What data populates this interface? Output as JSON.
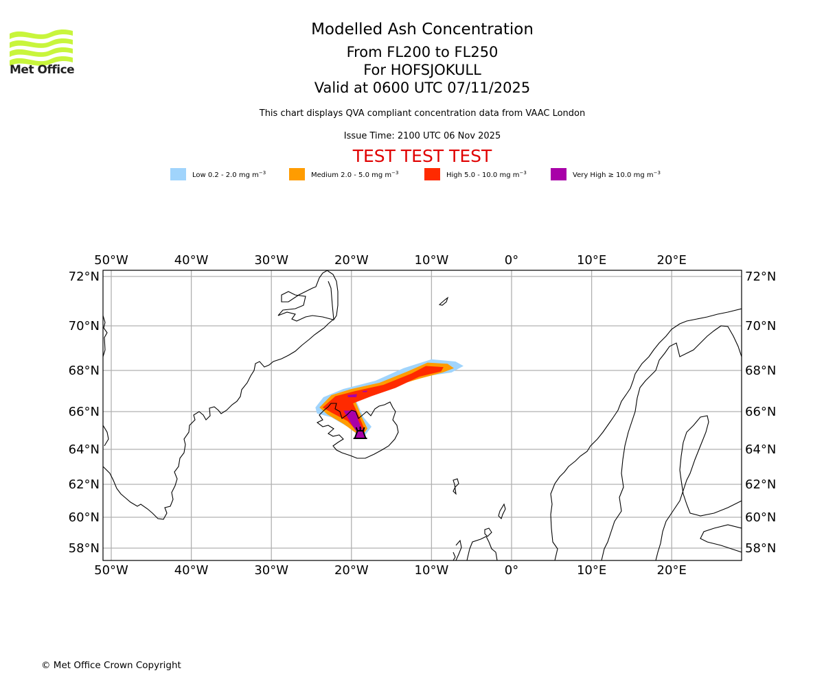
{
  "logo": {
    "name": "Met Office",
    "icon": "met-office-waves-icon",
    "color": "#c8f53c"
  },
  "header": {
    "title": "Modelled Ash Concentration",
    "levels": "From FL200 to FL250",
    "volcano": "For HOFSJOKULL",
    "valid": "Valid at 0600 UTC 07/11/2025",
    "subtitle": "This chart displays QVA compliant concentration data from VAAC London",
    "issue_time": "Issue Time: 2100 UTC 06 Nov 2025",
    "test_banner": "TEST TEST TEST",
    "test_color": "#e00000"
  },
  "legend": [
    {
      "label": "Low 0.2 - 2.0 mg m",
      "unit_exp": "−3",
      "color": "#a0d4fc"
    },
    {
      "label": "Medium 2.0 - 5.0 mg m",
      "unit_exp": "−3",
      "color": "#ff9c00"
    },
    {
      "label": "High 5.0 - 10.0 mg m",
      "unit_exp": "−3",
      "color": "#ff2a00"
    },
    {
      "label": "Very High ≥ 10.0 mg m",
      "unit_exp": "−3",
      "color": "#a800a8"
    }
  ],
  "map": {
    "lon_range": [
      -51,
      28.5
    ],
    "lat_range": [
      57.4,
      72.3
    ],
    "lon_ticks": [
      -50,
      -40,
      -30,
      -20,
      -10,
      0,
      10,
      20
    ],
    "lon_tick_labels": [
      "50°W",
      "40°W",
      "30°W",
      "20°W",
      "10°W",
      "0°",
      "10°E",
      "20°E"
    ],
    "lat_ticks": [
      72,
      70,
      68,
      66,
      64,
      62,
      60,
      58
    ],
    "lat_tick_labels": [
      "72°N",
      "70°N",
      "68°N",
      "66°N",
      "64°N",
      "62°N",
      "60°N",
      "58°N"
    ],
    "gridlines": true,
    "volcano_marker": {
      "name": "HOFSJOKULL",
      "lon": -18.9,
      "lat": 64.8,
      "icon": "volcano-icon"
    },
    "ash_plume": {
      "low": [
        [
          -24.5,
          66.2
        ],
        [
          -23.5,
          66.7
        ],
        [
          -21,
          67.1
        ],
        [
          -17,
          67.5
        ],
        [
          -13.5,
          68.1
        ],
        [
          -10,
          68.5
        ],
        [
          -7,
          68.4
        ],
        [
          -6,
          68.2
        ],
        [
          -7.5,
          67.9
        ],
        [
          -11,
          67.7
        ],
        [
          -14,
          67.4
        ],
        [
          -17,
          66.95
        ],
        [
          -19.5,
          66.6
        ],
        [
          -18.5,
          65.7
        ],
        [
          -17.5,
          65.2
        ],
        [
          -18.2,
          64.8
        ],
        [
          -19,
          64.7
        ],
        [
          -20.5,
          65.2
        ],
        [
          -22.5,
          65.7
        ],
        [
          -24.3,
          65.9
        ]
      ],
      "medium": [
        [
          -24,
          66.2
        ],
        [
          -22.5,
          66.8
        ],
        [
          -20,
          67.1
        ],
        [
          -16.5,
          67.4
        ],
        [
          -13,
          67.95
        ],
        [
          -10.5,
          68.35
        ],
        [
          -8,
          68.3
        ],
        [
          -7.2,
          68.1
        ],
        [
          -8.6,
          67.9
        ],
        [
          -11.5,
          67.6
        ],
        [
          -14.5,
          67.25
        ],
        [
          -17.5,
          66.85
        ],
        [
          -19.5,
          66.5
        ],
        [
          -18.7,
          65.7
        ],
        [
          -18,
          65.1
        ],
        [
          -18.6,
          64.75
        ],
        [
          -19.2,
          64.8
        ],
        [
          -21,
          65.35
        ],
        [
          -23,
          65.85
        ]
      ],
      "high": [
        [
          -23.6,
          66.2
        ],
        [
          -22,
          66.75
        ],
        [
          -19.5,
          67.0
        ],
        [
          -16,
          67.3
        ],
        [
          -12.5,
          67.85
        ],
        [
          -10.7,
          68.2
        ],
        [
          -8.5,
          68.15
        ],
        [
          -8.8,
          67.95
        ],
        [
          -11.5,
          67.7
        ],
        [
          -14.5,
          67.15
        ],
        [
          -17.5,
          66.75
        ],
        [
          -19.8,
          66.4
        ],
        [
          -19,
          65.7
        ],
        [
          -18.3,
          65.0
        ],
        [
          -18.9,
          64.8
        ],
        [
          -20.5,
          65.5
        ],
        [
          -22.5,
          65.95
        ]
      ],
      "very_high": [
        [
          [
            -21,
            66.05
          ],
          [
            -19.5,
            66.05
          ],
          [
            -19.2,
            65.6
          ],
          [
            -18.6,
            65.0
          ],
          [
            -19.2,
            64.85
          ],
          [
            -19.8,
            65.2
          ],
          [
            -20.5,
            65.7
          ]
        ],
        [
          [
            -20.5,
            66.8
          ],
          [
            -19.3,
            66.85
          ],
          [
            -19.4,
            66.7
          ],
          [
            -20.4,
            66.7
          ]
        ],
        [
          [
            -18.6,
            67.0
          ],
          [
            -18.0,
            67.02
          ],
          [
            -18.1,
            66.95
          ],
          [
            -18.6,
            66.95
          ]
        ]
      ]
    }
  },
  "footer": {
    "copyright": "© Met Office Crown Copyright"
  }
}
